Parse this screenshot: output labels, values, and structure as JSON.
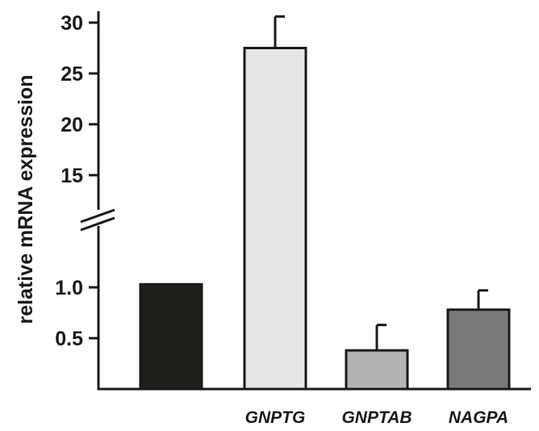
{
  "chart_data": {
    "type": "bar",
    "title": "",
    "xlabel": "",
    "ylabel": "relative mRNA expression",
    "y_axis_break": true,
    "y_segments": {
      "lower": {
        "range": [
          0,
          1.25
        ],
        "ticks": [
          0.5,
          1.0
        ],
        "tick_labels": [
          "0.5",
          "1.0"
        ]
      },
      "upper": {
        "range": [
          10.5,
          31
        ],
        "ticks": [
          15,
          20,
          25,
          30
        ],
        "tick_labels": [
          "15",
          "20",
          "25",
          "30"
        ]
      }
    },
    "categories": [
      "",
      "GNPTG",
      "GNPTAB",
      "NAGPA"
    ],
    "values": [
      1.03,
      27.5,
      0.38,
      0.78
    ],
    "error_up": [
      0,
      3.1,
      0.25,
      0.19
    ],
    "colors": [
      "#1f1f1b",
      "#e6e6e6",
      "#b3b3b3",
      "#7a7a7a"
    ],
    "grid": false,
    "legend": "none"
  }
}
